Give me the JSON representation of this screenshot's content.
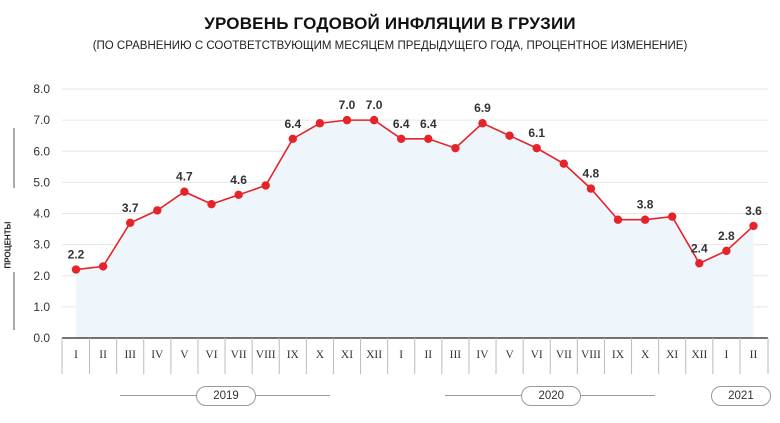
{
  "header": {
    "title": "УРОВЕНЬ ГОДОВОЙ ИНФЛЯЦИИ В ГРУЗИИ",
    "subtitle": "(ПО СРАВНЕНИЮ С СООТВЕТСТВУЮЩИМ МЕСЯЦЕМ ПРЕДЫДУЩЕГО ГОДА, ПРОЦЕНТНОЕ ИЗМЕНЕНИЕ)"
  },
  "colors": {
    "line": "#e52329",
    "area": "#eef6fc",
    "grid": "#e6e6e6",
    "axis": "#333333"
  },
  "chart_data": {
    "type": "line",
    "ylabel": "ПРОЦЕНТЫ",
    "ylim": [
      0,
      8
    ],
    "yticks": [
      "0.0",
      "1.0",
      "2.0",
      "3.0",
      "4.0",
      "5.0",
      "6.0",
      "7.0",
      "8.0"
    ],
    "grid": true,
    "categories": [
      "I",
      "II",
      "III",
      "IV",
      "V",
      "VI",
      "VII",
      "VIII",
      "IX",
      "X",
      "XI",
      "XII",
      "I",
      "II",
      "III",
      "IV",
      "V",
      "VI",
      "VII",
      "VIII",
      "IX",
      "X",
      "XI",
      "XII",
      "I",
      "II"
    ],
    "years": [
      {
        "label": "2019",
        "start": 0,
        "end": 11
      },
      {
        "label": "2020",
        "start": 12,
        "end": 23
      },
      {
        "label": "2021",
        "start": 24,
        "end": 25
      }
    ],
    "series": [
      {
        "values": [
          2.2,
          2.3,
          3.7,
          4.1,
          4.7,
          4.3,
          4.6,
          4.9,
          6.4,
          6.9,
          7.0,
          7.0,
          6.4,
          6.4,
          6.1,
          6.9,
          6.5,
          6.1,
          5.6,
          4.8,
          3.8,
          3.8,
          3.9,
          2.4,
          2.8,
          3.6
        ],
        "labels": [
          "2.2",
          "",
          "3.7",
          "",
          "4.7",
          "",
          "4.6",
          "",
          "6.4",
          "",
          "7.0",
          "7.0",
          "6.4",
          "6.4",
          "",
          "6.9",
          "",
          "6.1",
          "",
          "4.8",
          "",
          "3.8",
          "",
          "2.4",
          "2.8",
          "3.6"
        ]
      }
    ]
  }
}
